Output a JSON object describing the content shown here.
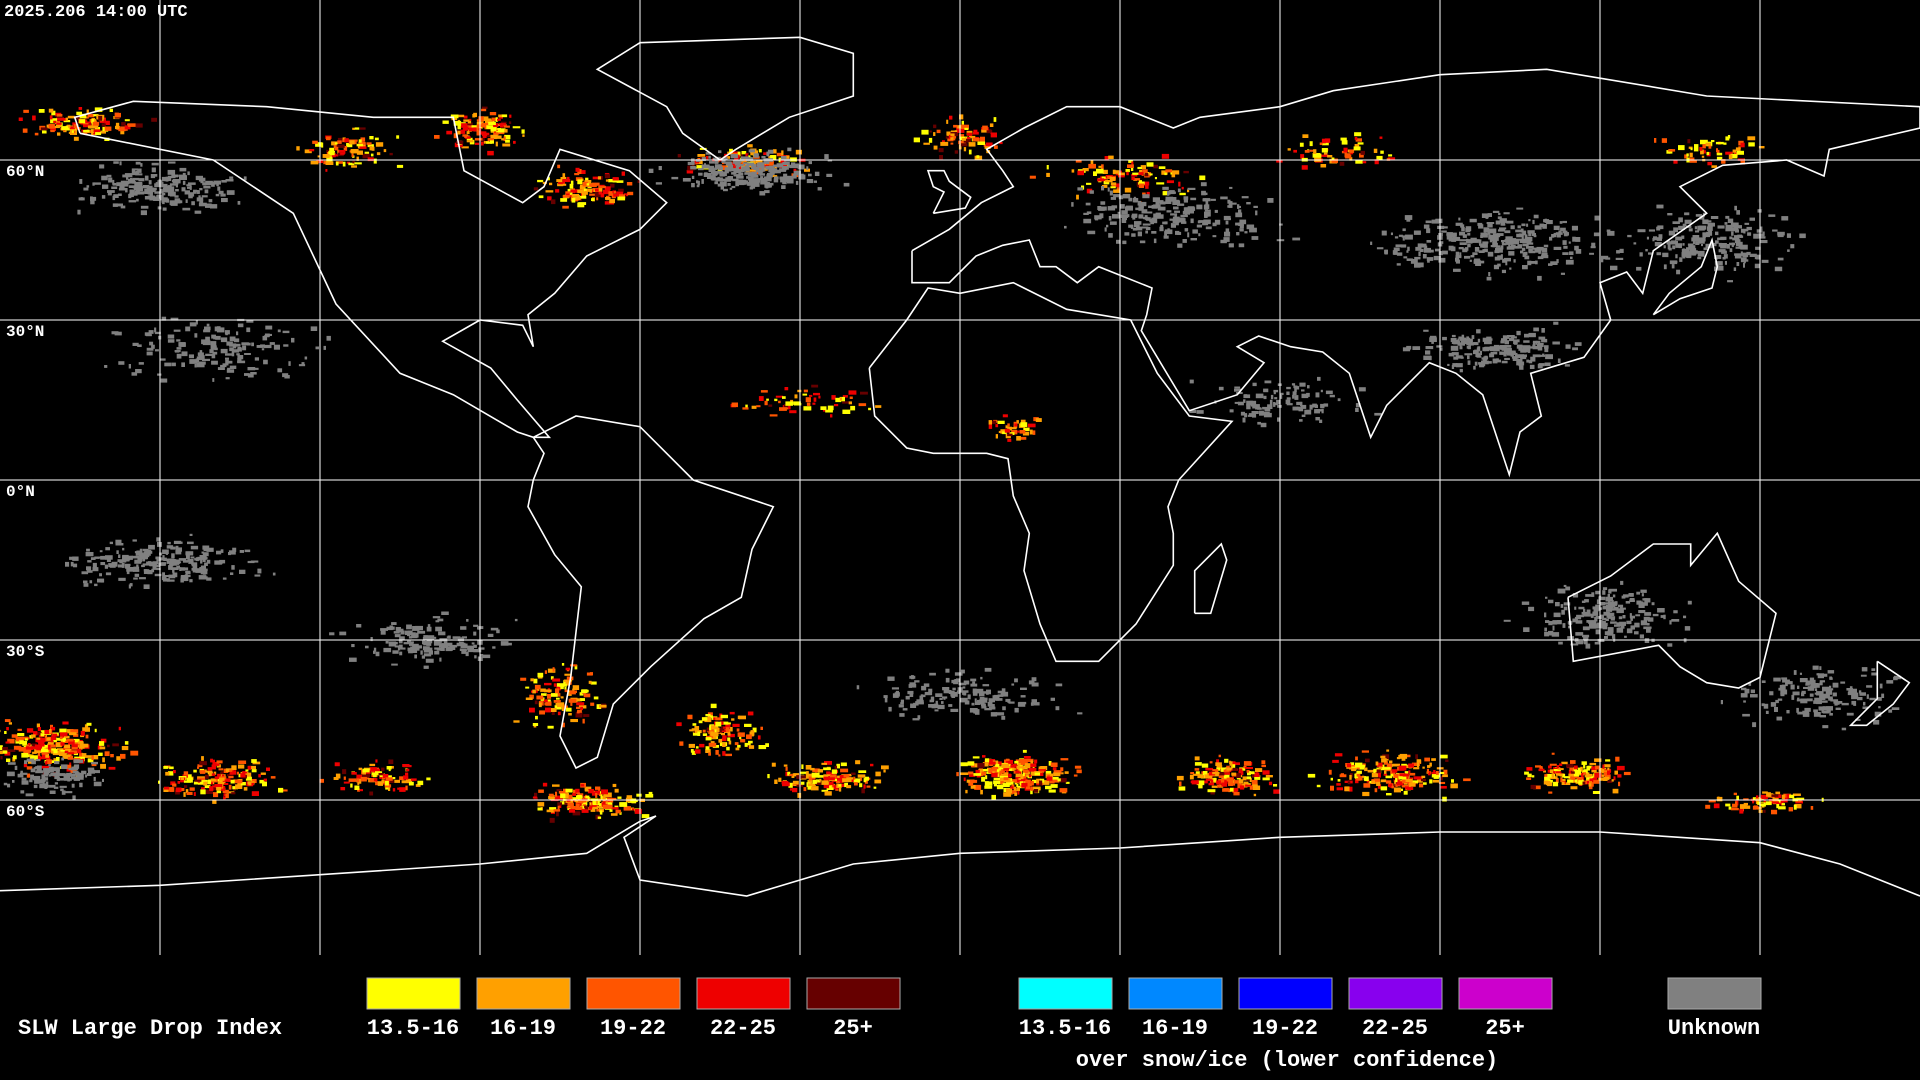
{
  "header": {
    "timestamp": "2025.206 14:00 UTC"
  },
  "map": {
    "lat_labels": [
      "60°N",
      "30°N",
      "0°N",
      "30°S",
      "60°S"
    ]
  },
  "legend": {
    "title": "SLW Large Drop Index",
    "items": [
      {
        "label": "13.5-16",
        "color": "#ffff00"
      },
      {
        "label": "16-19",
        "color": "#ffa000"
      },
      {
        "label": "19-22",
        "color": "#ff5500"
      },
      {
        "label": "22-25",
        "color": "#ee0000"
      },
      {
        "label": "25+",
        "color": "#660000"
      }
    ],
    "snow_items": [
      {
        "label": "13.5-16",
        "color": "#00ffff"
      },
      {
        "label": "16-19",
        "color": "#0088ff"
      },
      {
        "label": "19-22",
        "color": "#0000ff"
      },
      {
        "label": "22-25",
        "color": "#8800ee"
      },
      {
        "label": "25+",
        "color": "#cc00cc"
      }
    ],
    "snow_caption": "over snow/ice (lower confidence)",
    "unknown": {
      "label": "Unknown",
      "color": "#808080"
    }
  }
}
